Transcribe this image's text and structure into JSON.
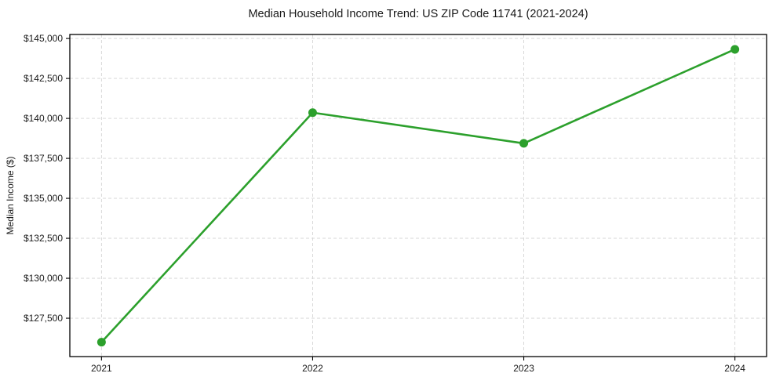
{
  "chart_data": {
    "type": "line",
    "title": "Median Household Income Trend: US ZIP Code 11741 (2021-2024)",
    "xlabel": "",
    "ylabel": "Median Income ($)",
    "x": [
      2021,
      2022,
      2023,
      2024
    ],
    "xtick_labels": [
      "2021",
      "2022",
      "2023",
      "2024"
    ],
    "series": [
      {
        "name": "Median Household Income",
        "values": [
          126000,
          140360,
          138440,
          144320
        ],
        "color": "#2ca02c",
        "marker": "circle"
      }
    ],
    "yticks": [
      127500,
      130000,
      132500,
      135000,
      137500,
      140000,
      142500,
      145000
    ],
    "ytick_labels": [
      "$127,500",
      "$130,000",
      "$132,500",
      "$135,000",
      "$137,500",
      "$140,000",
      "$142,500",
      "$145,000"
    ],
    "ylim": [
      125100,
      145250
    ],
    "xlim": [
      2020.85,
      2024.15
    ],
    "grid": true,
    "grid_on": "both",
    "grid_color": "#d4d4d4",
    "grid_dash": "4 3",
    "frame_color": "#000000",
    "background": "#ffffff",
    "legend": "none"
  }
}
